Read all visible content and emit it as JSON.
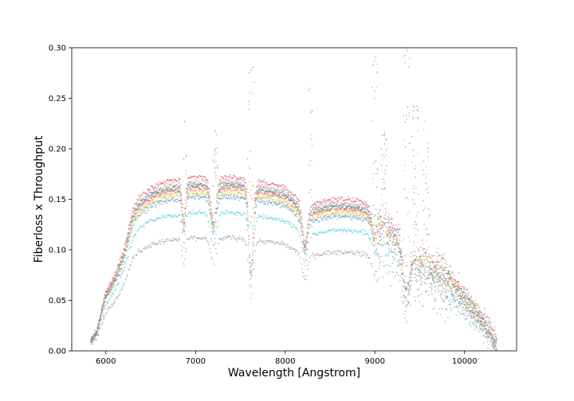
{
  "chart_data": {
    "type": "scatter",
    "title": "",
    "xlabel": "Wavelength [Angstrom]",
    "ylabel": "Fiberloss x Throughput",
    "xlim": [
      5620,
      10580
    ],
    "ylim": [
      0.0,
      0.3
    ],
    "x_ticks": [
      "6000",
      "7000",
      "8000",
      "9000",
      "10000"
    ],
    "y_ticks": [
      "0.00",
      "0.05",
      "0.10",
      "0.15",
      "0.20",
      "0.25",
      "0.30"
    ],
    "grid": false,
    "legend": "none",
    "x_range": [
      5830,
      10360
    ],
    "profile_x": [
      5830,
      5900,
      5950,
      6000,
      6100,
      6200,
      6300,
      6350,
      6500,
      6700,
      6850,
      7000,
      7200,
      7400,
      7600,
      7800,
      8000,
      8150,
      8300,
      8500,
      8700,
      8900,
      9000,
      9200,
      9300,
      9500,
      9700,
      9900,
      10100,
      10300,
      10360
    ],
    "profile_y": [
      0.01,
      0.02,
      0.04,
      0.058,
      0.075,
      0.1,
      0.14,
      0.15,
      0.162,
      0.168,
      0.17,
      0.172,
      0.172,
      0.172,
      0.17,
      0.166,
      0.162,
      0.15,
      0.145,
      0.15,
      0.15,
      0.147,
      0.136,
      0.125,
      0.112,
      0.092,
      0.082,
      0.068,
      0.044,
      0.018,
      0.008
    ],
    "absorption_bands": [
      {
        "center": 6870,
        "width": 25,
        "depth": 0.04
      },
      {
        "center": 7200,
        "width": 45,
        "depth": 0.04
      },
      {
        "center": 7620,
        "width": 35,
        "depth": 0.09
      },
      {
        "center": 8220,
        "width": 40,
        "depth": 0.04
      },
      {
        "center": 9000,
        "width": 40,
        "depth": 0.02
      },
      {
        "center": 9350,
        "width": 50,
        "depth": 0.05
      }
    ],
    "spike_regions": [
      {
        "center": 6880,
        "width": 20,
        "max": 0.27
      },
      {
        "center": 7220,
        "width": 30,
        "max": 0.22
      },
      {
        "center": 7620,
        "width": 40,
        "max": 0.29
      },
      {
        "center": 8280,
        "width": 25,
        "max": 0.26
      },
      {
        "center": 9000,
        "width": 30,
        "max": 0.3
      },
      {
        "center": 9100,
        "width": 30,
        "max": 0.22
      },
      {
        "center": 9350,
        "width": 40,
        "max": 0.3
      },
      {
        "center": 9450,
        "width": 40,
        "max": 0.25
      },
      {
        "center": 9570,
        "width": 40,
        "max": 0.23
      }
    ],
    "series": [
      {
        "color": "#d62728",
        "scale": 1.0
      },
      {
        "color": "#e377c2",
        "scale": 0.975
      },
      {
        "color": "#2ca02c",
        "scale": 0.96
      },
      {
        "color": "#9467bd",
        "scale": 0.95
      },
      {
        "color": "#8c564b",
        "scale": 0.94
      },
      {
        "color": "#ff7f0e",
        "scale": 0.925
      },
      {
        "color": "#bcbd22",
        "scale": 0.905
      },
      {
        "color": "#1f77b4",
        "scale": 0.885
      },
      {
        "color": "#17becf",
        "scale": 0.795
      },
      {
        "color": "#7f7f7f",
        "scale": 0.65
      }
    ]
  }
}
